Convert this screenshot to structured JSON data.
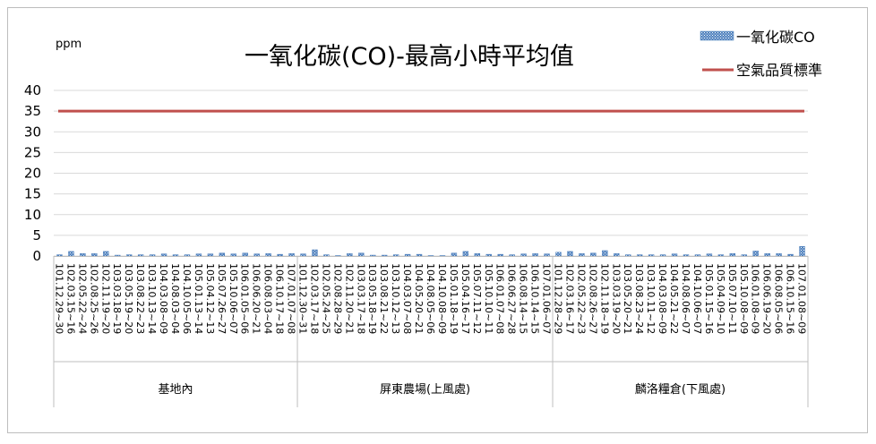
{
  "chart_data": {
    "type": "bar",
    "title": "一氧化碳(CO)-最高小時平均值",
    "ylabel": "ppm",
    "ylim": [
      0,
      40
    ],
    "yticks": [
      0,
      5,
      10,
      15,
      20,
      25,
      30,
      35,
      40
    ],
    "grid": true,
    "legend_position": "top-right",
    "standard_line": {
      "name": "空氣品質標準",
      "value": 35,
      "color": "#C0504D"
    },
    "bar_color": "#4F81BD",
    "groups": [
      {
        "name": "基地內",
        "categories": [
          "101.12.29~30",
          "102.03.15~16",
          "102.05.22~24",
          "102.08.25~26",
          "102.11.19~20",
          "103.03.18~19",
          "103.05.19~20",
          "103.08.22~23",
          "103.10.13~14",
          "104.03.08~09",
          "104.08.03~04",
          "104.10.05~06",
          "105.01.13~14",
          "105.04.12~13",
          "105.07.26~27",
          "105.10.06~07",
          "106.01.05~06",
          "106.06.20~21",
          "106.08.03~04",
          "106.10.17~18",
          "107.01.07~08"
        ],
        "values": [
          0.3,
          1.1,
          0.6,
          0.6,
          1.1,
          0.2,
          0.3,
          0.3,
          0.3,
          0.5,
          0.3,
          0.3,
          0.5,
          0.5,
          0.7,
          0.5,
          0.7,
          0.5,
          0.6,
          0.4,
          0.6
        ]
      },
      {
        "name": "屏東農場(上風處)",
        "categories": [
          "101.12.30~31",
          "102.03.17~18",
          "102.05.24~25",
          "102.08.28~29",
          "102.11.20~21",
          "103.03.17~18",
          "103.05.18~19",
          "103.08.21~22",
          "103.10.12~13",
          "104.03.07~08",
          "104.05.20~21",
          "104.08.05~06",
          "104.10.08~09",
          "105.01.18~19",
          "105.04.16~17",
          "105.07.11~12",
          "105.10.10~11",
          "106.01.07~08",
          "106.06.27~28",
          "106.08.14~15",
          "106.10.14~15",
          "107.01.06~07"
        ],
        "values": [
          0.5,
          1.5,
          0.3,
          0.1,
          0.6,
          0.7,
          0.2,
          0.2,
          0.3,
          0.4,
          0.4,
          0.1,
          0.1,
          0.7,
          1.1,
          0.6,
          0.4,
          0.4,
          0.3,
          0.5,
          0.6,
          0.5
        ]
      },
      {
        "name": "麟洛糧倉(下風處)",
        "categories": [
          "101.12.28~29",
          "102.03.16~17",
          "102.05.22~23",
          "102.08.26~27",
          "102.11.18~19",
          "103.03.19~20",
          "103.05.20~21",
          "103.08.23~24",
          "103.10.11~12",
          "104.03.08~09",
          "104.05.21~22",
          "104.08.06~07",
          "104.10.06~07",
          "105.01.15~16",
          "105.04.09~10",
          "105.07.10~11",
          "105.10.08~09",
          "106.01.08~09",
          "106.06.19~20",
          "106.08.05~06",
          "106.10.15~16",
          "107.01.08~09"
        ],
        "values": [
          0.9,
          1.1,
          0.6,
          0.7,
          1.3,
          0.6,
          0.3,
          0.3,
          0.3,
          0.3,
          0.5,
          0.3,
          0.3,
          0.5,
          0.3,
          0.6,
          0.3,
          1.2,
          0.6,
          0.6,
          0.4,
          2.3
        ]
      }
    ],
    "series": [
      {
        "name": "一氧化碳CO",
        "kind": "bar"
      },
      {
        "name": "空氣品質標準",
        "kind": "line"
      }
    ]
  }
}
